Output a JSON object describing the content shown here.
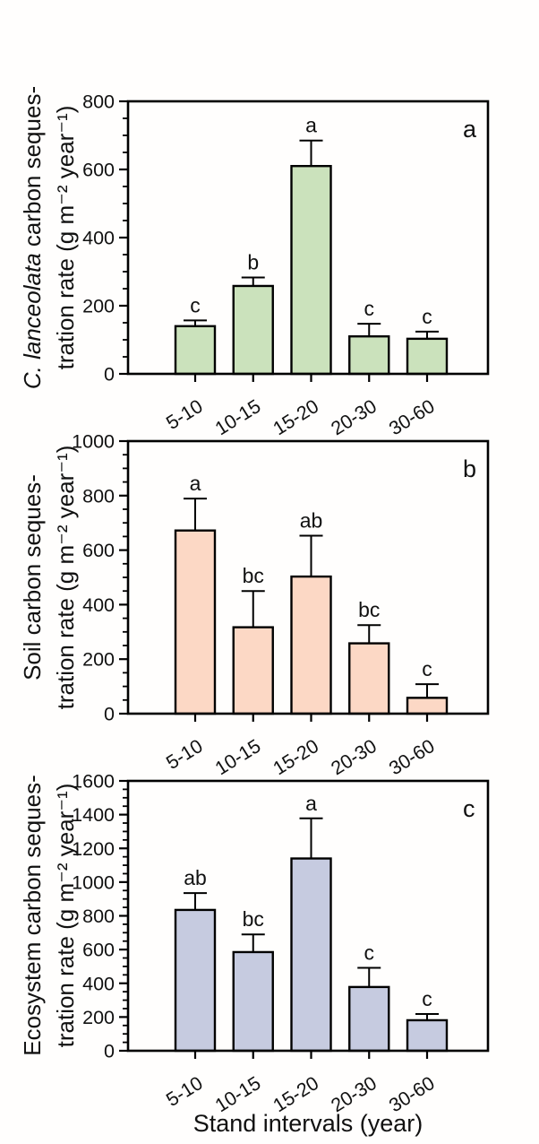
{
  "figure": {
    "x_axis_title": "Stand intervals (year)",
    "categories": [
      "5-10",
      "10-15",
      "15-20",
      "20-30",
      "30-60"
    ],
    "background_color": "#fffefd",
    "axis_color": "#000000"
  },
  "chart_data": [
    {
      "type": "bar",
      "panel_label": "a",
      "ylabel_italic": "C. lanceolata",
      "ylabel_line1_rest": " carbon seques-",
      "ylabel_line2": "tration rate (g m⁻² year⁻¹)",
      "categories": [
        "5-10",
        "10-15",
        "15-20",
        "20-30",
        "30-60"
      ],
      "values": [
        140,
        258,
        610,
        110,
        103
      ],
      "errors": [
        17,
        25,
        75,
        37,
        21
      ],
      "sig_letters": [
        "c",
        "b",
        "a",
        "c",
        "c"
      ],
      "ylim": [
        0,
        800
      ],
      "yticks": [
        0,
        200,
        400,
        600,
        800
      ],
      "ytick_step": 200,
      "minor_tick_step": 50,
      "bar_color": "#cbe2bc",
      "bar_edge_color": "#000000"
    },
    {
      "type": "bar",
      "panel_label": "b",
      "ylabel_line1": "Soil carbon seques-",
      "ylabel_line2": "tration rate (g m⁻² year⁻¹)",
      "categories": [
        "5-10",
        "10-15",
        "15-20",
        "20-30",
        "30-60"
      ],
      "values": [
        672,
        317,
        503,
        258,
        58
      ],
      "errors": [
        117,
        133,
        150,
        67,
        50
      ],
      "sig_letters": [
        "a",
        "bc",
        "ab",
        "bc",
        "c"
      ],
      "ylim": [
        0,
        1000
      ],
      "yticks": [
        0,
        200,
        400,
        600,
        800,
        1000
      ],
      "ytick_step": 200,
      "minor_tick_step": 50,
      "bar_color": "#fcd8c5",
      "bar_edge_color": "#000000"
    },
    {
      "type": "bar",
      "panel_label": "c",
      "ylabel_line1": "Ecosystem carbon seques-",
      "ylabel_line2": "tration rate (g m⁻² year⁻¹)",
      "categories": [
        "5-10",
        "10-15",
        "15-20",
        "20-30",
        "30-60"
      ],
      "values": [
        835,
        585,
        1140,
        378,
        181
      ],
      "errors": [
        100,
        105,
        238,
        114,
        37
      ],
      "sig_letters": [
        "ab",
        "bc",
        "a",
        "c",
        "c"
      ],
      "ylim": [
        0,
        1600
      ],
      "yticks": [
        0,
        200,
        400,
        600,
        800,
        1000,
        1200,
        1400,
        1600
      ],
      "ytick_step": 200,
      "minor_tick_step": 50,
      "bar_color": "#c6cbe0",
      "bar_edge_color": "#000000"
    }
  ]
}
